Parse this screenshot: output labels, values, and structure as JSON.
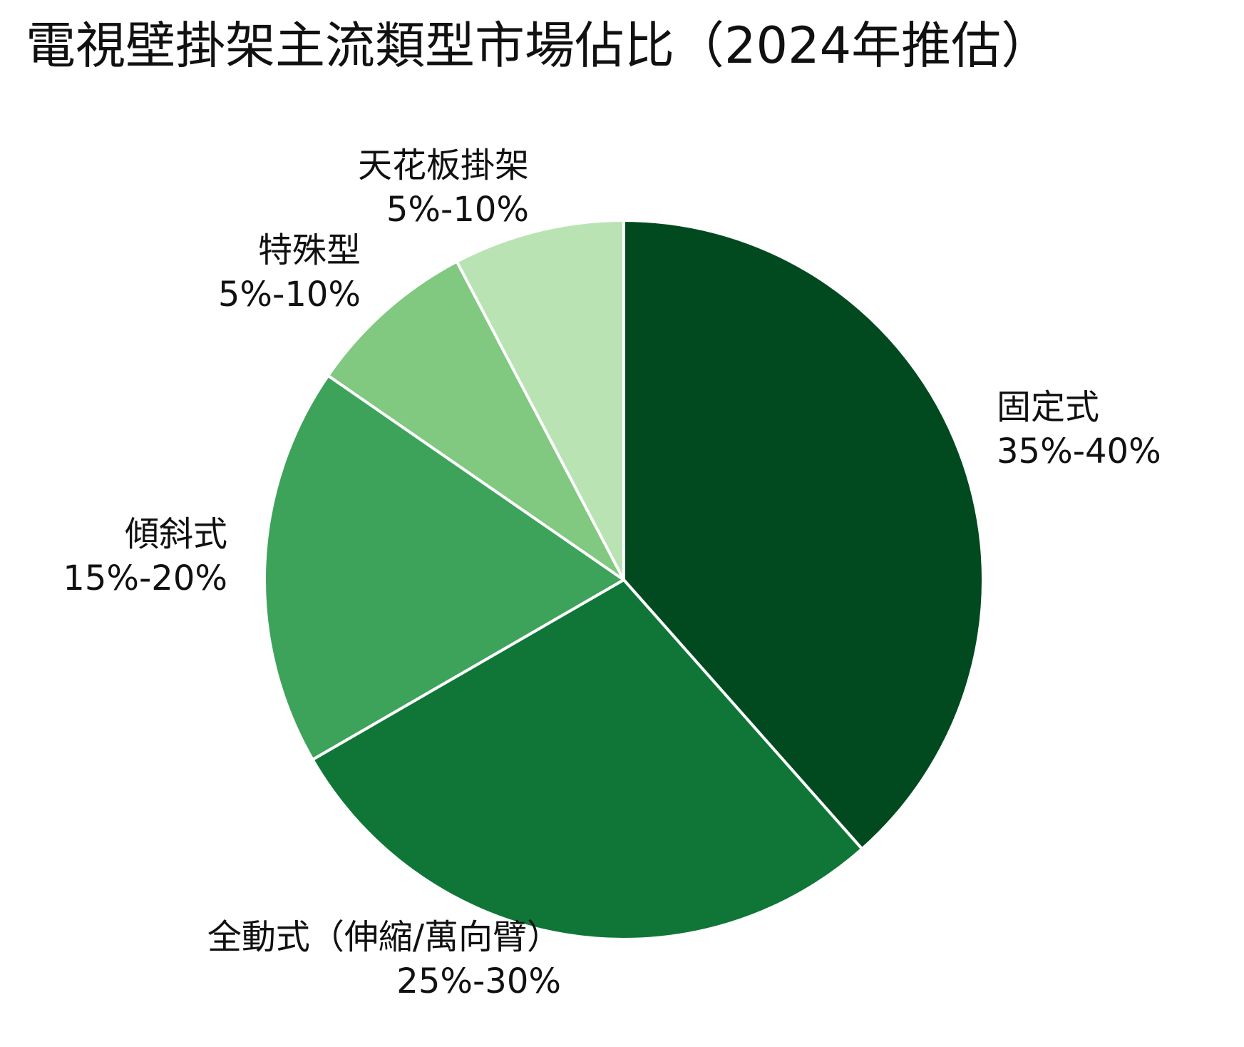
{
  "title": "電視壁掛架主流類型市場佔比（2024年推估）",
  "chart_data": {
    "type": "pie",
    "title": "電視壁掛架主流類型市場佔比（2024年推估）",
    "start_angle_deg": 0,
    "direction": "clockwise",
    "slices": [
      {
        "label": "固定式",
        "range": "35%-40%",
        "value": 37.5,
        "color": "#014A1F"
      },
      {
        "label": "全動式（伸縮/萬向臂）",
        "range": "25%-30%",
        "value": 27.5,
        "color": "#0F7637"
      },
      {
        "label": "傾斜式",
        "range": "15%-20%",
        "value": 17.5,
        "color": "#3DA35A"
      },
      {
        "label": "特殊型",
        "range": "5%-10%",
        "value": 7.5,
        "color": "#81C880"
      },
      {
        "label": "天花板掛架",
        "range": "5%-10%",
        "value": 7.5,
        "color": "#B9E3B3"
      }
    ]
  }
}
